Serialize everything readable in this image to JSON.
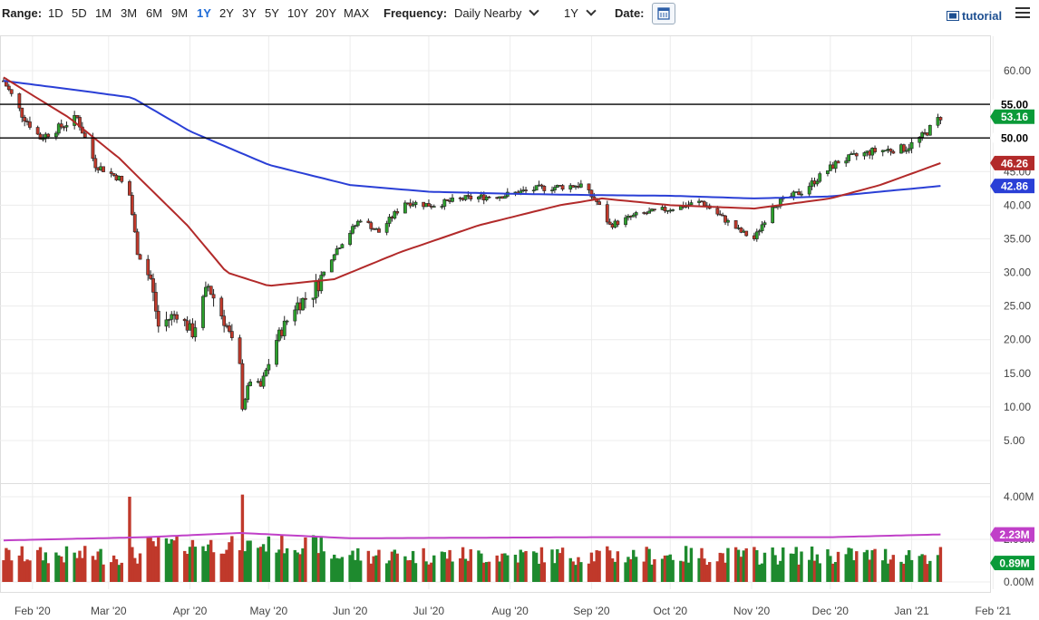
{
  "toolbar": {
    "range_label": "Range:",
    "ranges": [
      "1D",
      "5D",
      "1M",
      "3M",
      "6M",
      "9M",
      "1Y",
      "2Y",
      "3Y",
      "5Y",
      "10Y",
      "20Y",
      "MAX"
    ],
    "active_range": "1Y",
    "frequency_label": "Frequency:",
    "frequency_value": "Daily Nearby",
    "period_value": "1Y",
    "date_label": "Date:",
    "tutorial_label": "tutorial"
  },
  "chart_data": {
    "type": "candlestick",
    "price_axis": {
      "ticks": [
        "60.00",
        "55.00",
        "50.00",
        "45.00",
        "40.00",
        "35.00",
        "30.00",
        "25.00",
        "20.00",
        "15.00",
        "10.00",
        "5.00"
      ],
      "range": [
        2,
        63
      ]
    },
    "volume_axis": {
      "ticks": [
        "4.00M",
        "2.00M",
        "0.00M"
      ],
      "range": [
        0,
        4.5
      ]
    },
    "x_ticks": [
      "Feb '20",
      "Mar '20",
      "Apr '20",
      "May '20",
      "Jun '20",
      "Jul '20",
      "Aug '20",
      "Sep '20",
      "Oct '20",
      "Nov '20",
      "Dec '20",
      "Jan '21",
      "Feb '21"
    ],
    "x_range": [
      "2020-01-21",
      "2021-02-04"
    ],
    "horizontal_lines": [
      {
        "value": 55.0,
        "label": "55.00"
      },
      {
        "value": 50.0,
        "label": "50.00"
      }
    ],
    "last_price": {
      "value": 53.16,
      "label": "53.16",
      "color": "#0a9a38"
    },
    "ma_short": {
      "value": 46.26,
      "label": "46.26",
      "color": "#b22a2a"
    },
    "ma_long": {
      "value": 42.86,
      "label": "42.86",
      "color": "#2a3fd6"
    },
    "volume_ma": {
      "value": 2.23,
      "label": "2.23M",
      "color": "#c040c8"
    },
    "last_volume": {
      "value": 0.89,
      "label": "0.89M",
      "color": "#0a9a38"
    },
    "close_anchors": [
      [
        "2020-01-21",
        58.5
      ],
      [
        "2020-01-28",
        53.5
      ],
      [
        "2020-02-04",
        50.0
      ],
      [
        "2020-02-11",
        51.5
      ],
      [
        "2020-02-18",
        53.0
      ],
      [
        "2020-02-25",
        46.0
      ],
      [
        "2020-03-05",
        44.0
      ],
      [
        "2020-03-09",
        41.5
      ],
      [
        "2020-03-12",
        33.0
      ],
      [
        "2020-03-17",
        29.0
      ],
      [
        "2020-03-20",
        22.0
      ],
      [
        "2020-03-27",
        24.0
      ],
      [
        "2020-04-02",
        21.0
      ],
      [
        "2020-04-08",
        28.0
      ],
      [
        "2020-04-15",
        22.0
      ],
      [
        "2020-04-20",
        16.0
      ],
      [
        "2020-04-21",
        10.0
      ],
      [
        "2020-04-24",
        14.0
      ],
      [
        "2020-04-28",
        13.0
      ],
      [
        "2020-05-04",
        20.0
      ],
      [
        "2020-05-11",
        25.0
      ],
      [
        "2020-05-18",
        27.0
      ],
      [
        "2020-05-26",
        33.0
      ],
      [
        "2020-06-05",
        38.0
      ],
      [
        "2020-06-12",
        36.0
      ],
      [
        "2020-06-22",
        40.5
      ],
      [
        "2020-07-02",
        40.0
      ],
      [
        "2020-07-15",
        41.0
      ],
      [
        "2020-07-30",
        41.5
      ],
      [
        "2020-08-12",
        42.5
      ],
      [
        "2020-08-28",
        43.0
      ],
      [
        "2020-09-03",
        40.5
      ],
      [
        "2020-09-08",
        37.0
      ],
      [
        "2020-09-18",
        38.5
      ],
      [
        "2020-10-01",
        39.5
      ],
      [
        "2020-10-13",
        40.5
      ],
      [
        "2020-10-28",
        36.0
      ],
      [
        "2020-11-02",
        35.0
      ],
      [
        "2020-11-09",
        40.0
      ],
      [
        "2020-11-20",
        42.0
      ],
      [
        "2020-12-04",
        46.5
      ],
      [
        "2020-12-17",
        48.0
      ],
      [
        "2020-12-30",
        48.5
      ],
      [
        "2021-01-06",
        50.5
      ],
      [
        "2021-01-12",
        53.16
      ]
    ],
    "ma_short_anchors": [
      [
        "2020-01-21",
        59.0
      ],
      [
        "2020-02-15",
        53.0
      ],
      [
        "2020-03-05",
        47.0
      ],
      [
        "2020-03-31",
        37.0
      ],
      [
        "2020-04-15",
        30.0
      ],
      [
        "2020-05-01",
        28.0
      ],
      [
        "2020-05-26",
        29.0
      ],
      [
        "2020-06-20",
        33.0
      ],
      [
        "2020-07-20",
        37.0
      ],
      [
        "2020-08-20",
        40.0
      ],
      [
        "2020-09-05",
        41.0
      ],
      [
        "2020-10-01",
        40.0
      ],
      [
        "2020-11-02",
        39.5
      ],
      [
        "2020-12-01",
        41.0
      ],
      [
        "2020-12-20",
        43.0
      ],
      [
        "2021-01-12",
        46.26
      ]
    ],
    "ma_long_anchors": [
      [
        "2020-01-21",
        58.5
      ],
      [
        "2020-02-20",
        57.0
      ],
      [
        "2020-03-10",
        56.0
      ],
      [
        "2020-04-01",
        51.0
      ],
      [
        "2020-05-01",
        46.0
      ],
      [
        "2020-06-01",
        43.0
      ],
      [
        "2020-07-01",
        42.0
      ],
      [
        "2020-08-01",
        41.7
      ],
      [
        "2020-09-01",
        41.5
      ],
      [
        "2020-10-01",
        41.4
      ],
      [
        "2020-11-02",
        41.0
      ],
      [
        "2020-12-01",
        41.3
      ],
      [
        "2021-01-12",
        42.86
      ]
    ],
    "volume_spikes": [
      [
        "2020-03-09",
        4.0
      ],
      [
        "2020-04-21",
        4.1
      ]
    ]
  }
}
